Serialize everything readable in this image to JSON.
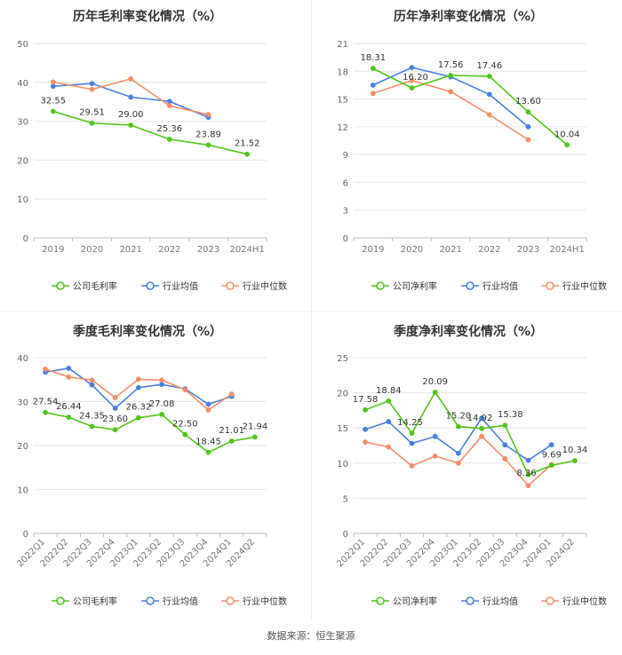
{
  "source_note": "数据来源：恒生聚源",
  "chart_data": [
    {
      "type": "line",
      "title": "历年毛利率变化情况（%）",
      "categories": [
        "2019",
        "2020",
        "2021",
        "2022",
        "2023",
        "2024H1"
      ],
      "ylim": [
        0,
        50
      ],
      "yticks": [
        0,
        10,
        20,
        30,
        40,
        50
      ],
      "grid": true,
      "legend_position": "bottom",
      "series": [
        {
          "name": "公司毛利率",
          "color": "#52c41a",
          "values": [
            32.55,
            29.51,
            29.0,
            25.36,
            23.89,
            21.52
          ],
          "labels": [
            "32.55",
            "29.51",
            "29.00",
            "25.36",
            "23.89",
            "21.52"
          ]
        },
        {
          "name": "行业均值",
          "color": "#4a7fe0",
          "values": [
            39.0,
            39.7,
            36.2,
            35.1,
            31.0,
            null
          ]
        },
        {
          "name": "行业中位数",
          "color": "#f28f6b",
          "values": [
            40.1,
            38.2,
            40.9,
            34.0,
            31.7,
            null
          ]
        }
      ]
    },
    {
      "type": "line",
      "title": "历年净利率变化情况（%）",
      "categories": [
        "2019",
        "2020",
        "2021",
        "2022",
        "2023",
        "2024H1"
      ],
      "ylim": [
        0,
        21
      ],
      "yticks": [
        0,
        3,
        6,
        9,
        12,
        15,
        18,
        21
      ],
      "grid": true,
      "legend_position": "bottom",
      "series": [
        {
          "name": "公司净利率",
          "color": "#52c41a",
          "values": [
            18.31,
            16.2,
            17.56,
            17.46,
            13.6,
            10.04
          ],
          "labels": [
            "18.31",
            "16.20",
            "17.56",
            "17.46",
            "13.60",
            "10.04"
          ]
        },
        {
          "name": "行业均值",
          "color": "#4a7fe0",
          "values": [
            16.5,
            18.4,
            17.4,
            15.5,
            12.0,
            null
          ]
        },
        {
          "name": "行业中位数",
          "color": "#f28f6b",
          "values": [
            15.6,
            17.0,
            15.8,
            13.3,
            10.6,
            null
          ]
        }
      ]
    },
    {
      "type": "line",
      "title": "季度毛利率变化情况（%）",
      "categories": [
        "2022Q1",
        "2022Q2",
        "2022Q3",
        "2022Q4",
        "2023Q1",
        "2023Q2",
        "2023Q3",
        "2023Q4",
        "2024Q1",
        "2024Q2"
      ],
      "ylim": [
        0,
        40
      ],
      "yticks": [
        0,
        10,
        20,
        30,
        40
      ],
      "grid": true,
      "legend_position": "bottom",
      "series": [
        {
          "name": "公司毛利率",
          "color": "#52c41a",
          "values": [
            27.54,
            26.44,
            24.35,
            23.6,
            26.32,
            27.08,
            22.5,
            18.45,
            21.01,
            21.94
          ],
          "labels": [
            "27.54",
            "26.44",
            "24.35",
            "23.60",
            "26.32",
            "27.08",
            "22.50",
            "18.45",
            "21.01",
            "21.94"
          ]
        },
        {
          "name": "行业均值",
          "color": "#4a7fe0",
          "values": [
            36.7,
            37.6,
            33.8,
            28.5,
            33.2,
            33.9,
            32.9,
            29.4,
            31.2,
            null
          ]
        },
        {
          "name": "行业中位数",
          "color": "#f28f6b",
          "values": [
            37.4,
            35.6,
            34.9,
            30.9,
            35.1,
            34.9,
            32.7,
            28.1,
            31.7,
            null
          ]
        }
      ]
    },
    {
      "type": "line",
      "title": "季度净利率变化情况（%）",
      "categories": [
        "2022Q1",
        "2022Q2",
        "2022Q3",
        "2022Q4",
        "2023Q1",
        "2023Q2",
        "2023Q3",
        "2023Q4",
        "2024Q1",
        "2024Q2"
      ],
      "ylim": [
        0,
        25
      ],
      "yticks": [
        0,
        5,
        10,
        15,
        20,
        25
      ],
      "grid": true,
      "legend_position": "bottom",
      "series": [
        {
          "name": "公司净利率",
          "color": "#52c41a",
          "values": [
            17.58,
            18.84,
            14.25,
            20.09,
            15.2,
            14.92,
            15.38,
            8.36,
            9.69,
            10.34
          ],
          "labels": [
            "17.58",
            "18.84",
            "14.25",
            "20.09",
            "15.20",
            "14.92",
            "15.38",
            "8.36",
            "9.69",
            "10.34"
          ]
        },
        {
          "name": "行业均值",
          "color": "#4a7fe0",
          "values": [
            14.8,
            15.9,
            12.8,
            13.8,
            11.4,
            16.4,
            12.6,
            10.4,
            12.6,
            null
          ]
        },
        {
          "name": "行业中位数",
          "color": "#f28f6b",
          "values": [
            13.0,
            12.3,
            9.6,
            11.0,
            10.0,
            13.8,
            10.6,
            6.8,
            9.8,
            null
          ]
        }
      ]
    }
  ]
}
